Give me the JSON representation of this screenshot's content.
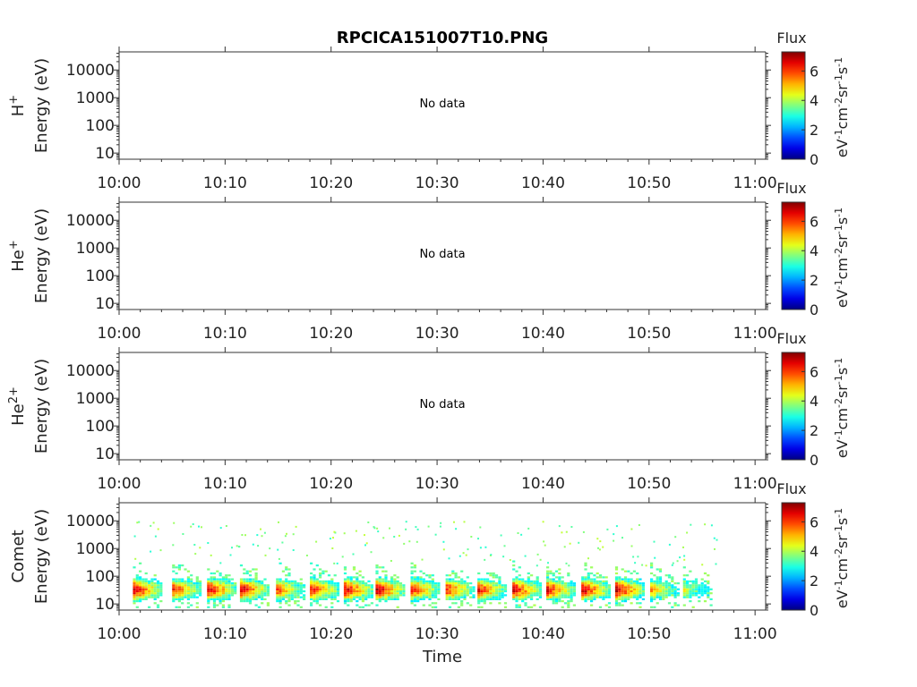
{
  "title": "RPCICA151007T10.PNG",
  "xlabel": "Time",
  "colorbar": {
    "title": "Flux",
    "label_parts": [
      "eV",
      "-1",
      "cm",
      "-2",
      "sr",
      "-1",
      "s",
      "-1"
    ],
    "ticks": [
      "0",
      "2",
      "4",
      "6"
    ],
    "vmin": 0,
    "vmax": 7.3
  },
  "chart_data": {
    "type": "heatmap",
    "x_tick_labels": [
      "10:00",
      "10:10",
      "10:20",
      "10:30",
      "10:40",
      "10:50",
      "11:00"
    ],
    "x_range_minutes": [
      0,
      61
    ],
    "y_tick_labels": [
      "10",
      "100",
      "1000",
      "10000"
    ],
    "y_scale": "log",
    "y_range_eV": [
      6,
      45000
    ],
    "panels": [
      {
        "species": "H",
        "charge": "+",
        "ylabel": "Energy (eV)",
        "annotation": "No data",
        "has_data": false
      },
      {
        "species": "He",
        "charge": "+",
        "ylabel": "Energy (eV)",
        "annotation": "No data",
        "has_data": false
      },
      {
        "species": "He",
        "charge": "2+",
        "ylabel": "Energy (eV)",
        "annotation": "No data",
        "has_data": false
      },
      {
        "species": "Comet",
        "charge": "",
        "ylabel": "Energy (eV)",
        "annotation": "",
        "has_data": true,
        "bursts_minute_start": [
          1.3,
          5.0,
          8.3,
          11.4,
          14.8,
          18.0,
          21.2,
          24.2,
          27.5,
          30.8,
          33.8,
          37.1,
          40.3,
          43.6,
          46.8,
          50.1,
          53.2
        ],
        "bursts_peak_flux": [
          6.8,
          6.2,
          6.7,
          6.8,
          5.8,
          6.4,
          6.7,
          6.9,
          6.3,
          6.2,
          6.3,
          6.7,
          6.5,
          6.8,
          7.0,
          5.2,
          4.3
        ],
        "peak_energy_eV": 30,
        "sparse_high_energy_range_eV": [
          1000,
          10000
        ]
      }
    ]
  }
}
